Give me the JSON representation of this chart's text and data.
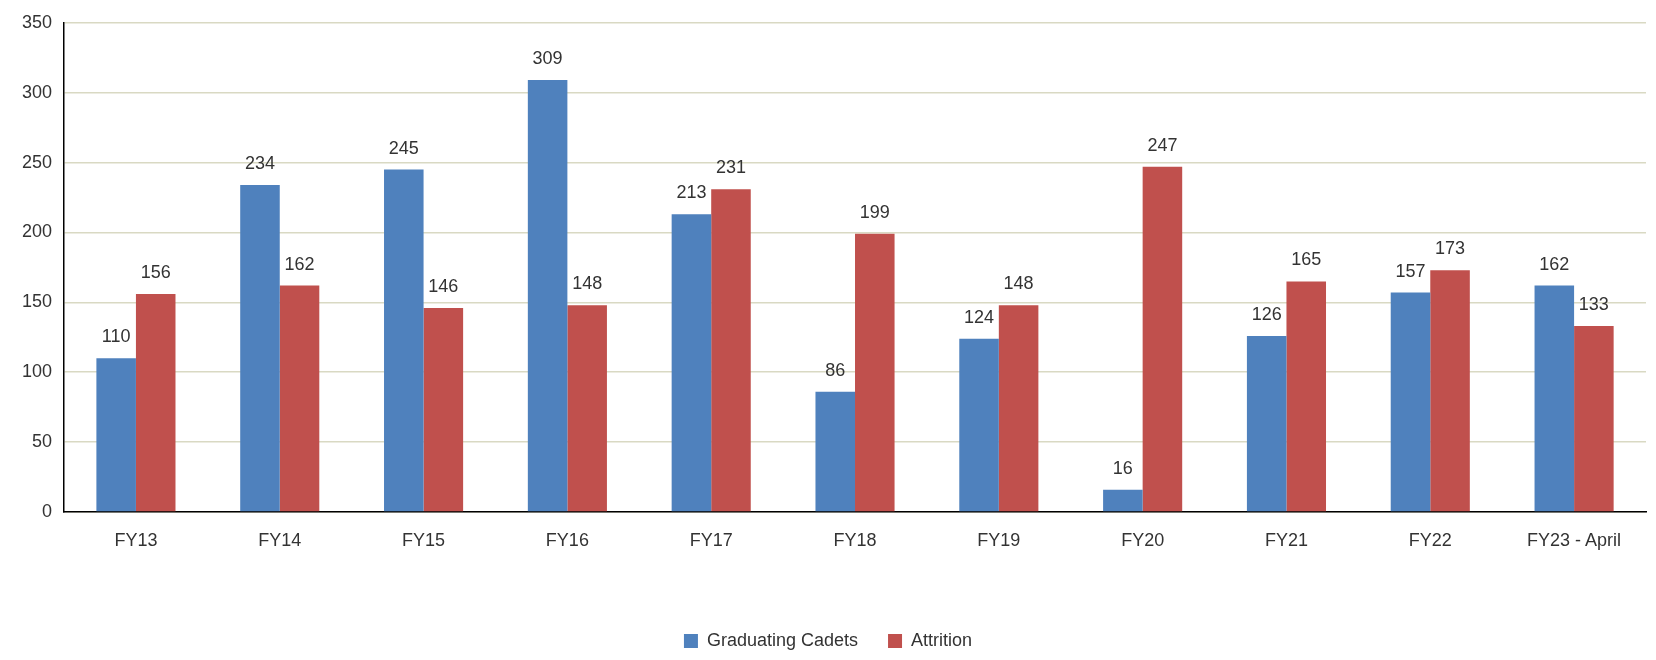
{
  "chart_data": {
    "type": "bar",
    "categories": [
      "FY13",
      "FY14",
      "FY15",
      "FY16",
      "FY17",
      "FY18",
      "FY19",
      "FY20",
      "FY21",
      "FY22",
      "FY23 - April"
    ],
    "series": [
      {
        "name": "Graduating Cadets",
        "color": "#4f81bd",
        "values": [
          110,
          234,
          245,
          309,
          213,
          86,
          124,
          16,
          126,
          157,
          162
        ]
      },
      {
        "name": "Attrition",
        "color": "#c0504d",
        "values": [
          156,
          162,
          146,
          148,
          231,
          199,
          148,
          247,
          165,
          173,
          133
        ]
      }
    ],
    "ylim": [
      0,
      350
    ],
    "yticks": [
      0,
      50,
      100,
      150,
      200,
      250,
      300,
      350
    ],
    "grid": "y",
    "legend": "bottom",
    "data_labels": true
  }
}
